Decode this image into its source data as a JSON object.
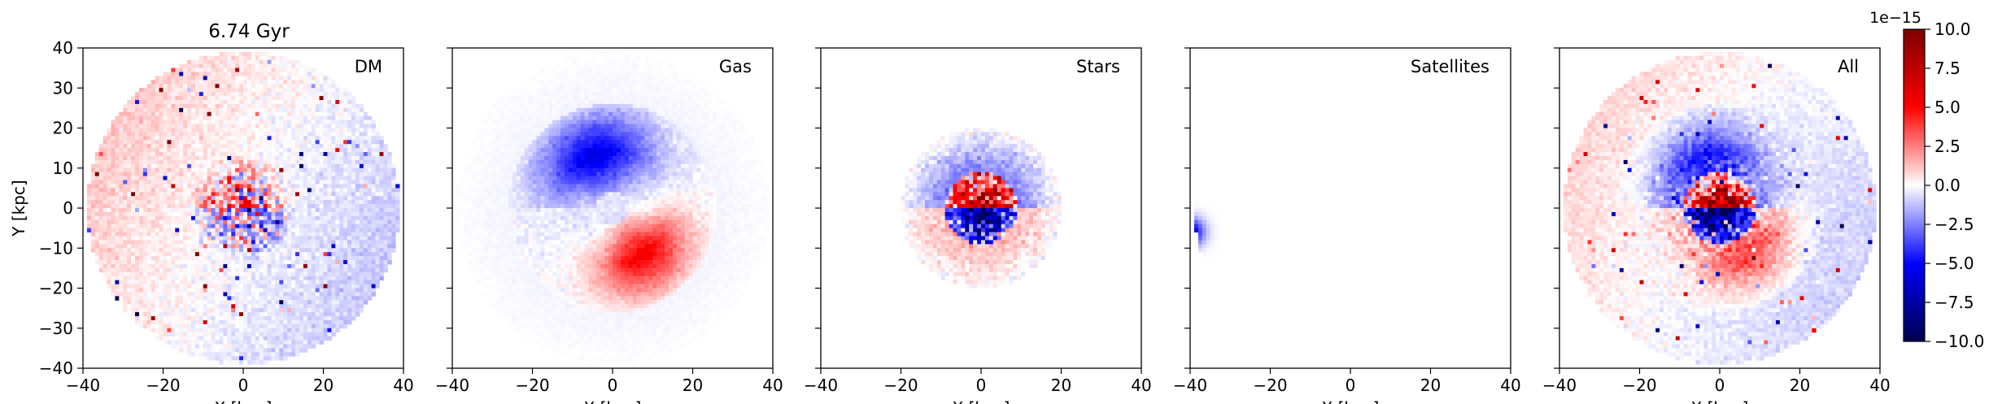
{
  "figure": {
    "title": "6.74 Gyr",
    "colorbar": {
      "exponent_label": "1e−15",
      "ticks": [
        "10.0",
        "7.5",
        "5.0",
        "2.5",
        "0.0",
        "−2.5",
        "−5.0",
        "−7.5",
        "−10.0"
      ],
      "colormap": "seismic",
      "colors": {
        "negative": "#00004c",
        "mid_negative": "#0000ff",
        "zero": "#ffffff",
        "mid_positive": "#ff0000",
        "positive": "#7f0000"
      }
    }
  },
  "chart_data": [
    {
      "type": "heatmap",
      "title": "DM",
      "xlabel": "X [kpc]",
      "ylabel": "Y [kpc]",
      "xlim": [
        -40,
        40
      ],
      "ylim": [
        -40,
        40
      ],
      "xticks": [
        "−40",
        "−20",
        "0",
        "20",
        "40"
      ],
      "yticks": [
        "40",
        "30",
        "20",
        "10",
        "0",
        "−10",
        "−20",
        "−30",
        "−40"
      ],
      "grid": false,
      "value_range": [
        -10,
        10
      ],
      "value_scale": "1e-15"
    },
    {
      "type": "heatmap",
      "title": "Gas",
      "xlabel": "X [kpc]",
      "ylabel": "",
      "xlim": [
        -40,
        40
      ],
      "ylim": [
        -40,
        40
      ],
      "xticks": [
        "−40",
        "−20",
        "0",
        "20",
        "40"
      ],
      "grid": false,
      "value_range": [
        -10,
        10
      ],
      "value_scale": "1e-15"
    },
    {
      "type": "heatmap",
      "title": "Stars",
      "xlabel": "X [kpc]",
      "ylabel": "",
      "xlim": [
        -40,
        40
      ],
      "ylim": [
        -40,
        40
      ],
      "xticks": [
        "−40",
        "−20",
        "0",
        "20",
        "40"
      ],
      "grid": false,
      "value_range": [
        -10,
        10
      ],
      "value_scale": "1e-15"
    },
    {
      "type": "heatmap",
      "title": "Satellites",
      "xlabel": "X [kpc]",
      "ylabel": "",
      "xlim": [
        -40,
        40
      ],
      "ylim": [
        -40,
        40
      ],
      "xticks": [
        "−40",
        "−20",
        "0",
        "20",
        "40"
      ],
      "grid": false,
      "value_range": [
        -10,
        10
      ],
      "value_scale": "1e-15"
    },
    {
      "type": "heatmap",
      "title": "All",
      "xlabel": "X [kpc]",
      "ylabel": "",
      "xlim": [
        -40,
        40
      ],
      "ylim": [
        -40,
        40
      ],
      "xticks": [
        "−40",
        "−20",
        "0",
        "20",
        "40"
      ],
      "grid": false,
      "value_range": [
        -10,
        10
      ],
      "value_scale": "1e-15"
    }
  ]
}
